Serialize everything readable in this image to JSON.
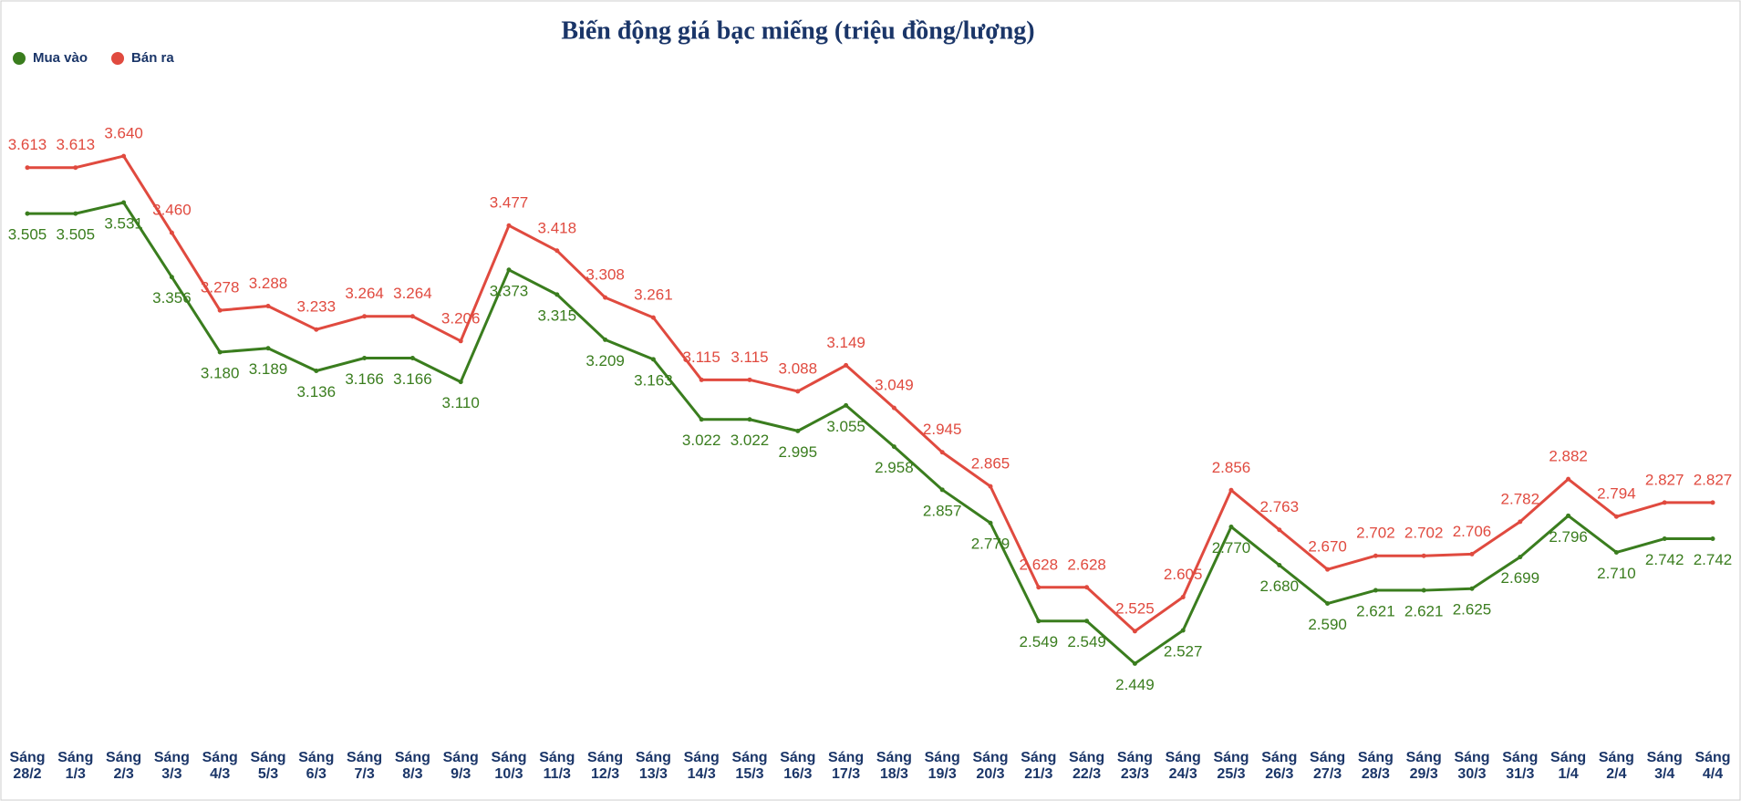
{
  "chart_data": {
    "type": "line",
    "title": "Biến động giá bạc miếng (triệu đồng/lượng)",
    "categories": [
      "Sáng 28/2",
      "Sáng 1/3",
      "Sáng 2/3",
      "Sáng 3/3",
      "Sáng 4/3",
      "Sáng 5/3",
      "Sáng 6/3",
      "Sáng 7/3",
      "Sáng 8/3",
      "Sáng 9/3",
      "Sáng 10/3",
      "Sáng 11/3",
      "Sáng 12/3",
      "Sáng 13/3",
      "Sáng 14/3",
      "Sáng 15/3",
      "Sáng 16/3",
      "Sáng 17/3",
      "Sáng 18/3",
      "Sáng 19/3",
      "Sáng 20/3",
      "Sáng 21/3",
      "Sáng 22/3",
      "Sáng 23/3",
      "Sáng 24/3",
      "Sáng 25/3",
      "Sáng 26/3",
      "Sáng 27/3",
      "Sáng 28/3",
      "Sáng 29/3",
      "Sáng 30/3",
      "Sáng 31/3",
      "Sáng 1/4",
      "Sáng 2/4",
      "Sáng 3/4",
      "Sáng 4/4"
    ],
    "series": [
      {
        "name": "Mua vào",
        "color": "#3a7d1e",
        "values": [
          3.505,
          3.505,
          3.531,
          3.356,
          3.18,
          3.189,
          3.136,
          3.166,
          3.166,
          3.11,
          3.373,
          3.315,
          3.209,
          3.163,
          3.022,
          3.022,
          2.995,
          3.055,
          2.958,
          2.857,
          2.779,
          2.549,
          2.549,
          2.449,
          2.527,
          2.77,
          2.68,
          2.59,
          2.621,
          2.621,
          2.625,
          2.699,
          2.796,
          2.71,
          2.742,
          2.742
        ],
        "value_labels": [
          "3.505",
          "3.505",
          "3.531",
          "3.356",
          "3.180",
          "3.189",
          "3.136",
          "3.166",
          "3.166",
          "3.110",
          "3.373",
          "3.315",
          "3.209",
          "3.163",
          "3.022",
          "3.022",
          "2.995",
          "3.055",
          "2.958",
          "2.857",
          "2.779",
          "2.549",
          "2.549",
          "2.449",
          "2.527",
          "2.770",
          "2.680",
          "2.590",
          "2.621",
          "2.621",
          "2.625",
          "2.699",
          "2.796",
          "2.710",
          "2.742",
          "2.742"
        ]
      },
      {
        "name": "Bán ra",
        "color": "#e04a3f",
        "values": [
          3.613,
          3.613,
          3.64,
          3.46,
          3.278,
          3.288,
          3.233,
          3.264,
          3.264,
          3.206,
          3.477,
          3.418,
          3.308,
          3.261,
          3.115,
          3.115,
          3.088,
          3.149,
          3.049,
          2.945,
          2.865,
          2.628,
          2.628,
          2.525,
          2.605,
          2.856,
          2.763,
          2.67,
          2.702,
          2.702,
          2.706,
          2.782,
          2.882,
          2.794,
          2.827,
          2.827
        ],
        "value_labels": [
          "3.613",
          "3.613",
          "3.640",
          "3.460",
          "3.278",
          "3.288",
          "3.233",
          "3.264",
          "3.264",
          "3.206",
          "3.477",
          "3.418",
          "3.308",
          "3.261",
          "3.115",
          "3.115",
          "3.088",
          "3.149",
          "3.049",
          "2.945",
          "2.865",
          "2.628",
          "2.628",
          "2.525",
          "2.605",
          "2.856",
          "2.763",
          "2.670",
          "2.702",
          "2.702",
          "2.706",
          "2.782",
          "2.882",
          "2.794",
          "2.827",
          "2.827"
        ]
      }
    ],
    "ylim": [
      2.3,
      3.85
    ],
    "legend": "top-left"
  }
}
